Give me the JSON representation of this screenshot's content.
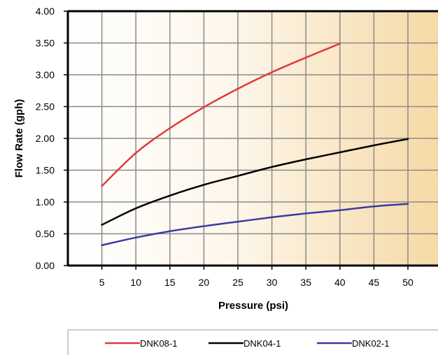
{
  "chart_data": {
    "type": "line",
    "title": "",
    "xlabel": "Pressure (psi)",
    "ylabel": "Flow Rate (gph)",
    "xlim": [
      0,
      55
    ],
    "ylim": [
      0,
      4
    ],
    "x_ticks": [
      "5",
      "10",
      "15",
      "20",
      "25",
      "30",
      "35",
      "40",
      "45",
      "50"
    ],
    "y_ticks": [
      "0.00",
      "0.50",
      "1.00",
      "1.50",
      "2.00",
      "2.50",
      "3.00",
      "3.50",
      "4.00"
    ],
    "grid": true,
    "legend_position": "bottom",
    "series": [
      {
        "name": "DNK08-1",
        "color": "#e0393e",
        "x": [
          5,
          10,
          15,
          20,
          25,
          30,
          35,
          40
        ],
        "y": [
          1.25,
          1.77,
          2.16,
          2.49,
          2.78,
          3.04,
          3.27,
          3.49
        ]
      },
      {
        "name": "DNK04-1",
        "color": "#000000",
        "x": [
          5,
          10,
          15,
          20,
          25,
          30,
          35,
          40,
          45,
          50
        ],
        "y": [
          0.64,
          0.9,
          1.1,
          1.27,
          1.41,
          1.55,
          1.67,
          1.78,
          1.89,
          1.99
        ]
      },
      {
        "name": "DNK02-1",
        "color": "#3b3ba0",
        "x": [
          5,
          10,
          15,
          20,
          25,
          30,
          35,
          40,
          45,
          50
        ],
        "y": [
          0.32,
          0.44,
          0.54,
          0.62,
          0.69,
          0.76,
          0.82,
          0.87,
          0.93,
          0.97
        ]
      }
    ]
  }
}
